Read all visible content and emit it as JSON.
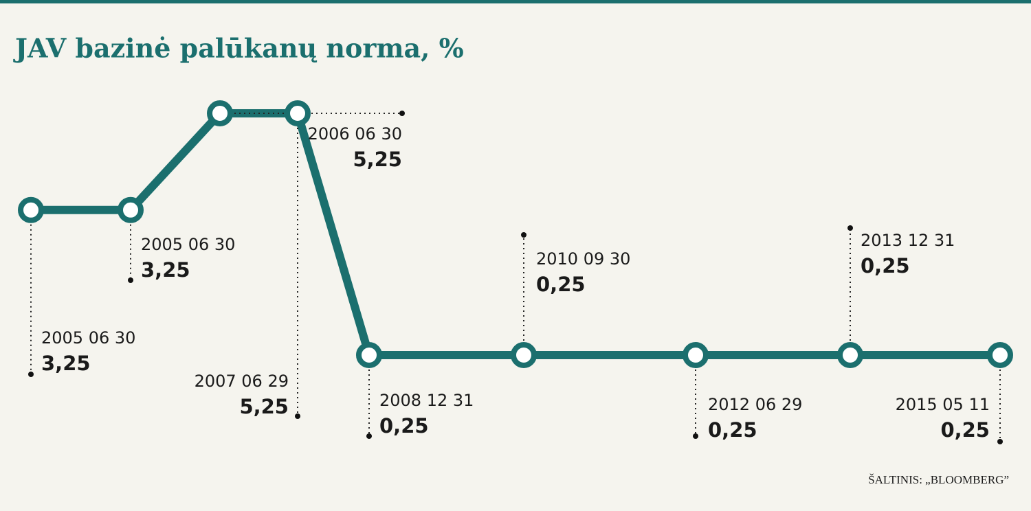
{
  "chart_data": {
    "type": "line",
    "title": "JAV bazinė palūkanų norma, %",
    "source": "ŠALTINIS: „BLOOMBERG”",
    "categories": [
      "2005 06 30",
      "2005 06 30",
      "2006 06 30",
      "2007 06 29",
      "2008 12 31",
      "2010 09 30",
      "2012 06 29",
      "2013 12 31",
      "2015 05 11"
    ],
    "values": [
      3.25,
      3.25,
      5.25,
      5.25,
      0.25,
      0.25,
      0.25,
      0.25,
      0.25
    ],
    "value_labels": [
      "3,25",
      "3,25",
      "5,25",
      "5,25",
      "0,25",
      "0,25",
      "0,25",
      "0,25",
      "0,25"
    ],
    "color": "#1b6f6e"
  }
}
